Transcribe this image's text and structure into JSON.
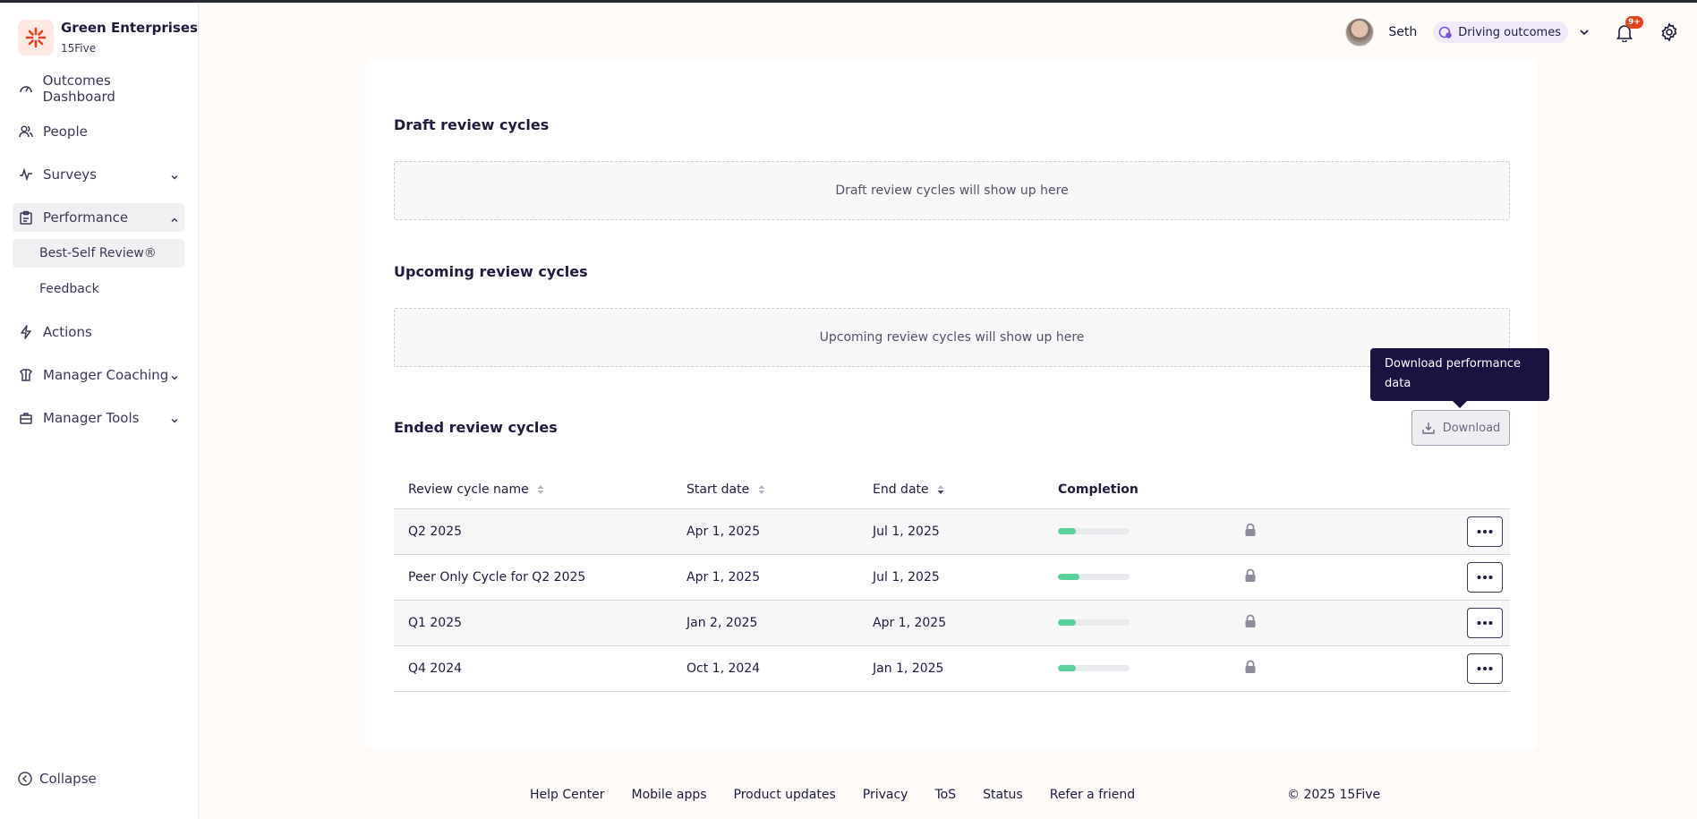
{
  "brand": {
    "name": "Green Enterprises",
    "sub": "15Five",
    "icon": "brand-logo-icon",
    "accent": "#e5431f"
  },
  "sidebar": {
    "items": [
      {
        "label": "Outcomes Dashboard",
        "icon": "gauge-icon"
      },
      {
        "label": "People",
        "icon": "people-icon"
      },
      {
        "label": "Surveys",
        "icon": "pulse-icon",
        "expandable": true
      },
      {
        "label": "Performance",
        "icon": "clipboard-icon",
        "expanded": true
      },
      {
        "label": "Best-Self Review®",
        "sub": true,
        "active": true
      },
      {
        "label": "Feedback",
        "sub": true
      },
      {
        "label": "Actions",
        "icon": "bolt-icon"
      },
      {
        "label": "Manager Coaching",
        "icon": "coaching-icon",
        "expandable": true
      },
      {
        "label": "Manager Tools",
        "icon": "toolbox-icon",
        "expandable": true
      }
    ],
    "collapse_label": "Collapse"
  },
  "header": {
    "user_name": "Seth",
    "outcomes_label": "Driving outcomes",
    "notification_badge": "9+"
  },
  "main": {
    "draft": {
      "title": "Draft review cycles",
      "empty": "Draft review cycles will show up here"
    },
    "upcoming": {
      "title": "Upcoming review cycles",
      "empty": "Upcoming review cycles will show up here"
    },
    "ended": {
      "title": "Ended review cycles",
      "download_label": "Download",
      "tooltip": "Download performance data",
      "columns": [
        "Review cycle name",
        "Start date",
        "End date",
        "Completion"
      ],
      "rows": [
        {
          "name": "Q2 2025",
          "start": "Apr 1, 2025",
          "end": "Jul 1, 2025",
          "completion": 0.25
        },
        {
          "name": "Peer Only Cycle for Q2 2025",
          "start": "Apr 1, 2025",
          "end": "Jul 1, 2025",
          "completion": 0.3
        },
        {
          "name": "Q1 2025",
          "start": "Jan 2, 2025",
          "end": "Apr 1, 2025",
          "completion": 0.25
        },
        {
          "name": "Q4 2024",
          "start": "Oct 1, 2024",
          "end": "Jan 1, 2025",
          "completion": 0.25
        }
      ]
    }
  },
  "footer": {
    "links": [
      "Help Center",
      "Mobile apps",
      "Product updates",
      "Privacy",
      "ToS",
      "Status",
      "Refer a friend"
    ],
    "copyright": "© 2025 15Five"
  }
}
